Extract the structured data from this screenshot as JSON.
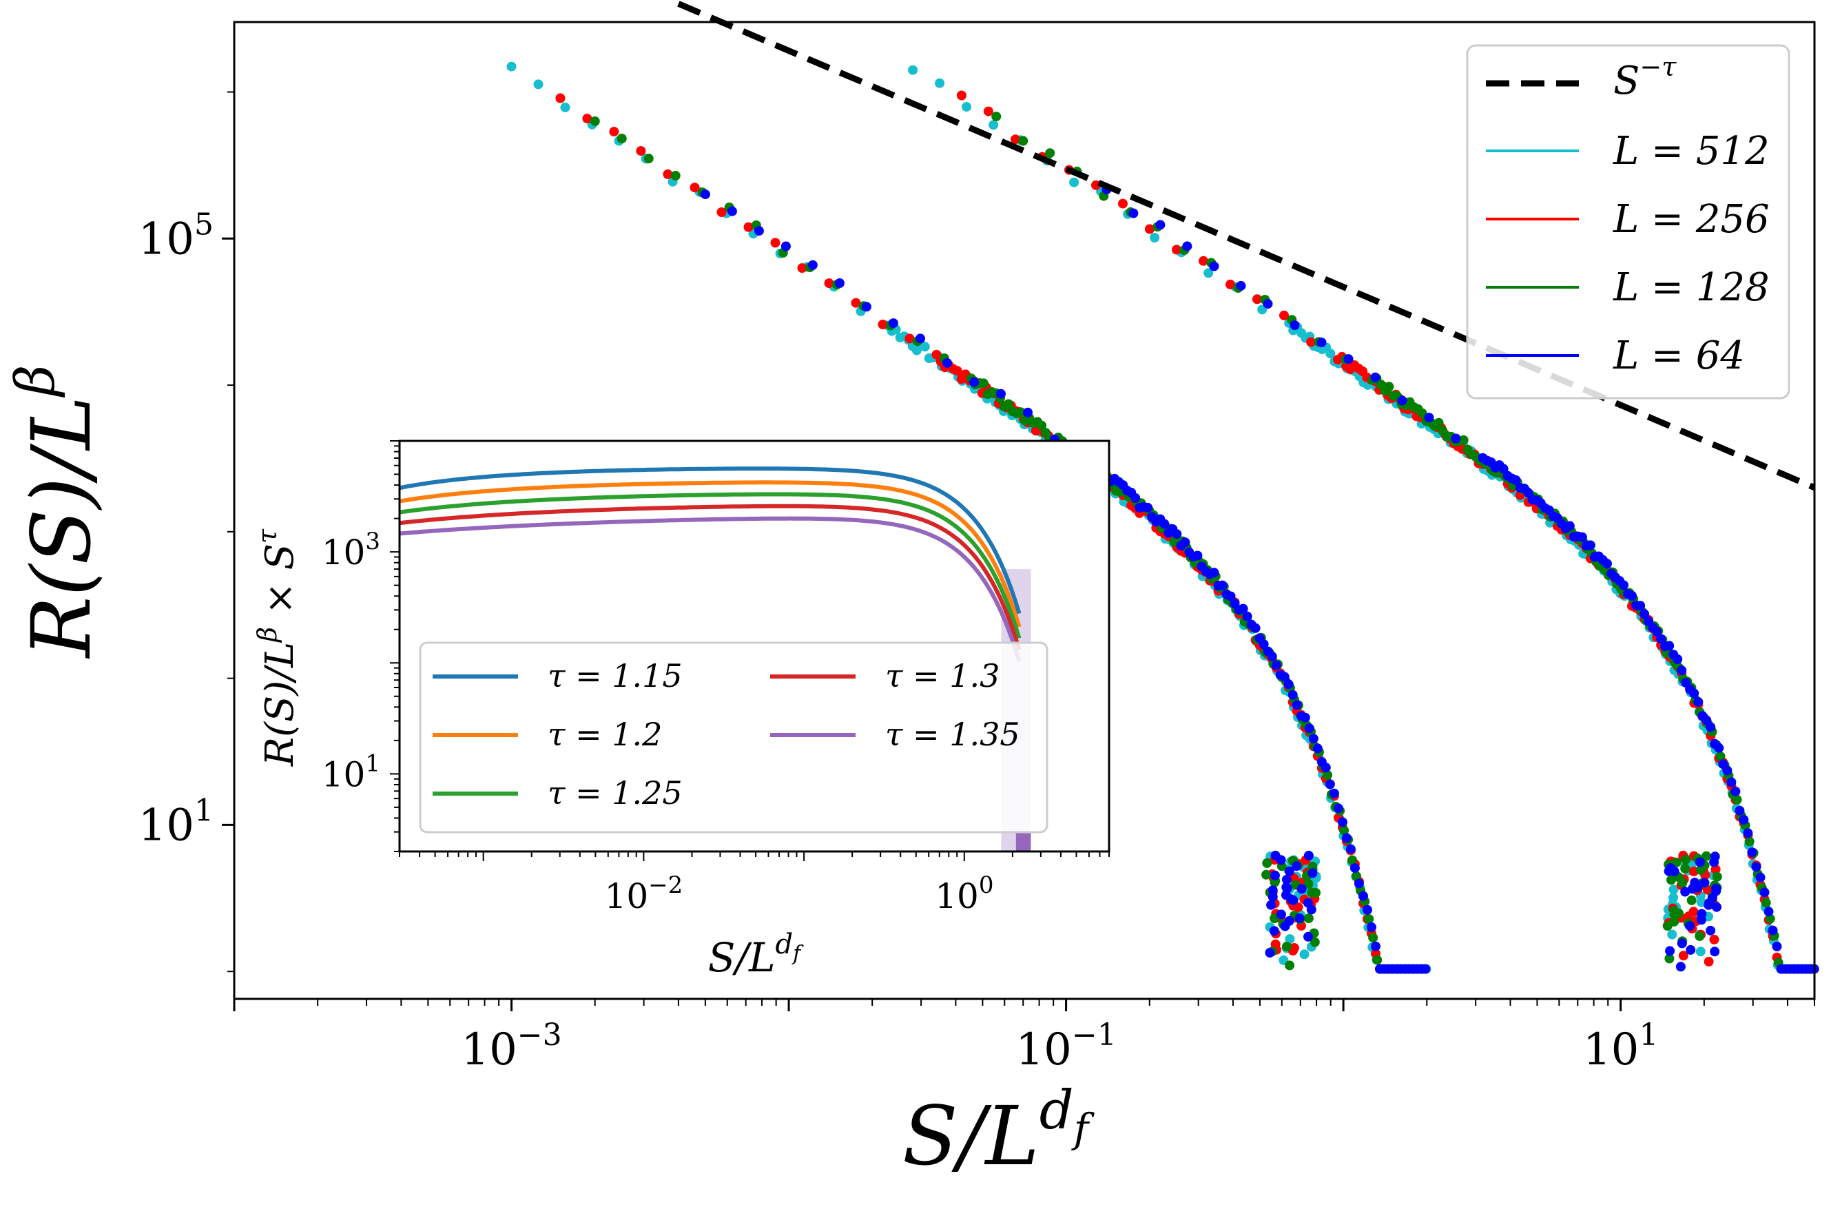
{
  "chart_data": [
    {
      "type": "scatter",
      "name": "main",
      "title": "",
      "xlabel": "S/L^{d_f}",
      "ylabel": "R(S)/L^β",
      "xscale": "log",
      "yscale": "log",
      "xlim": [
        0.0001,
        50
      ],
      "ylim": [
        0.65,
        3000000
      ],
      "x_ticks": [
        {
          "value": 0.001,
          "base": "10",
          "exp": "−3"
        },
        {
          "value": 0.1,
          "base": "10",
          "exp": "−1"
        },
        {
          "value": 10,
          "base": "10",
          "exp": "1"
        }
      ],
      "y_ticks": [
        {
          "value": 10,
          "base": "10",
          "exp": "1"
        },
        {
          "value": 100000,
          "base": "10",
          "exp": "5"
        }
      ],
      "legend_position": "top-right",
      "reference_line": {
        "name": "S^{−τ}",
        "label_base": "S",
        "label_exp": "−τ",
        "color": "#000000",
        "dash": true,
        "x": [
          0.004,
          50
        ],
        "y": [
          4000000,
          2000
        ]
      },
      "tau": 1.3,
      "cutoff_x": [
        0.5,
        14
      ],
      "series": [
        {
          "name": "L = 512",
          "L": 512,
          "color": "#17becf"
        },
        {
          "name": "L = 256",
          "L": 256,
          "color": "#ff0000"
        },
        {
          "name": "L = 128",
          "L": 128,
          "color": "#007f00"
        },
        {
          "name": "L = 64",
          "L": 64,
          "color": "#0000ff"
        }
      ]
    },
    {
      "type": "line",
      "name": "inset",
      "title": "",
      "xlabel": "S/L^{d_f}",
      "ylabel": "R(S)/L^β × S^τ",
      "xscale": "log",
      "yscale": "log",
      "xlim": [
        0.0003,
        8
      ],
      "ylim": [
        2,
        10000
      ],
      "x_ticks": [
        {
          "value": 0.01,
          "base": "10",
          "exp": "−2"
        },
        {
          "value": 1,
          "base": "10",
          "exp": "0"
        }
      ],
      "y_ticks": [
        {
          "value": 10,
          "base": "10",
          "exp": "1"
        },
        {
          "value": 1000,
          "base": "10",
          "exp": "3"
        }
      ],
      "legend_position": "lower-left",
      "series": [
        {
          "name": "τ = 1.15",
          "tau": 1.15,
          "plateau": 5800,
          "color": "#1f77b4"
        },
        {
          "name": "τ = 1.2",
          "tau": 1.2,
          "plateau": 4400,
          "color": "#ff7f0e"
        },
        {
          "name": "τ = 1.25",
          "tau": 1.25,
          "plateau": 3500,
          "color": "#2ca02c"
        },
        {
          "name": "τ = 1.3",
          "tau": 1.3,
          "plateau": 2800,
          "color": "#d62728"
        },
        {
          "name": "τ = 1.35",
          "tau": 1.35,
          "plateau": 2250,
          "color": "#9467bd"
        }
      ]
    }
  ],
  "legend_main": [
    {
      "base": "S",
      "exp": "−τ"
    },
    {
      "text": "L = 512"
    },
    {
      "text": "L = 256"
    },
    {
      "text": "L = 128"
    },
    {
      "text": "L = 64"
    }
  ],
  "legend_inset": [
    {
      "text": "τ = 1.15"
    },
    {
      "text": "τ = 1.2"
    },
    {
      "text": "τ = 1.25"
    },
    {
      "text": "τ = 1.3"
    },
    {
      "text": "τ = 1.35"
    }
  ],
  "axis_titles": {
    "main_x": {
      "base": "S/L",
      "sup": "d",
      "sub": "f"
    },
    "main_y": {
      "base": "R(S)/L",
      "sup": "β"
    },
    "inset_x": {
      "base": "S/L",
      "sup": "d",
      "sub": "f"
    },
    "inset_y": {
      "base": "R(S)/L",
      "sup": "β",
      "tail": " × S",
      "sup2": "τ"
    }
  }
}
